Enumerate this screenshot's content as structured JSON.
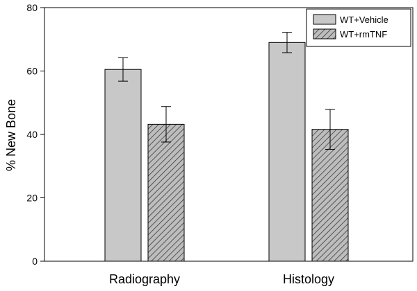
{
  "chart_data": {
    "type": "bar",
    "title": "",
    "xlabel": "",
    "ylabel": "% New Bone",
    "ylim": [
      0,
      80
    ],
    "yticks": [
      0,
      20,
      40,
      60,
      80
    ],
    "grid": false,
    "legend_position": "top-right",
    "categories": [
      "Radiography",
      "Histology"
    ],
    "series": [
      {
        "name": "WT+Vehicle",
        "fill": "#c8c8c8",
        "pattern": "solid",
        "values": [
          60.5,
          69.0
        ],
        "error": [
          3.7,
          3.2
        ]
      },
      {
        "name": "WT+rmTNF",
        "fill": "#bdbdbd",
        "pattern": "diagonal-hatch",
        "values": [
          43.2,
          41.6
        ],
        "error": [
          5.6,
          6.3
        ]
      }
    ]
  }
}
